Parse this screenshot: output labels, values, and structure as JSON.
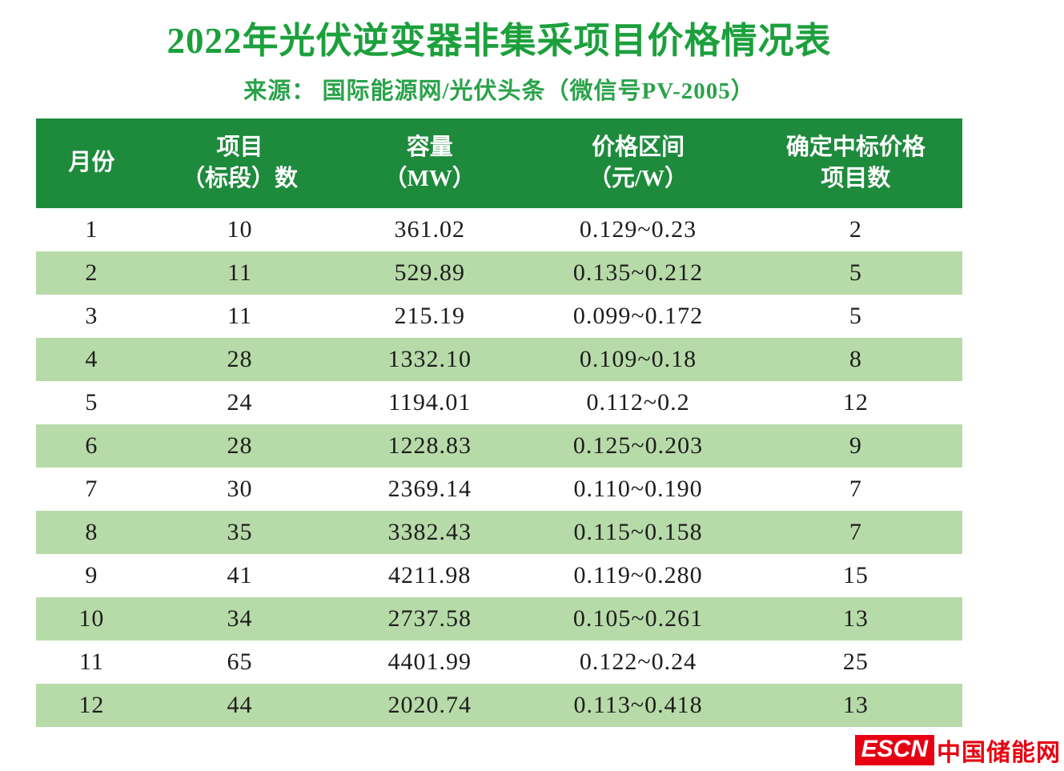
{
  "page": {
    "title": "2022年光伏逆变器非集采项目价格情况表",
    "subtitle": "来源： 国际能源网/光伏头条（微信号PV-2005）"
  },
  "colors": {
    "title_green": "#1ca03c",
    "subtitle_green": "#2aa24a",
    "header_bg_green": "#1e8a3c",
    "alt_row_green": "#b7dba8",
    "logo_red": "#e60012",
    "body_text": "#1c1c1c"
  },
  "table": {
    "headers": [
      {
        "line1": "月份",
        "line2": ""
      },
      {
        "line1": "项目",
        "line2": "（标段）数"
      },
      {
        "line1": "容量",
        "line2": "（MW）"
      },
      {
        "line1": "价格区间",
        "line2": "（元/W）"
      },
      {
        "line1": "确定中标价格",
        "line2": "项目数"
      }
    ]
  },
  "logo": {
    "escn": "ESCN",
    "site": "中国储能网"
  },
  "chart_data": {
    "type": "table",
    "title": "2022年光伏逆变器非集采项目价格情况表",
    "source": "来源： 国际能源网/光伏头条（微信号PV-2005）",
    "columns": [
      "月份",
      "项目（标段）数",
      "容量（MW）",
      "价格区间（元/W）",
      "确定中标价格项目数"
    ],
    "rows": [
      [
        "1",
        "10",
        "361.02",
        "0.129~0.23",
        "2"
      ],
      [
        "2",
        "11",
        "529.89",
        "0.135~0.212",
        "5"
      ],
      [
        "3",
        "11",
        "215.19",
        "0.099~0.172",
        "5"
      ],
      [
        "4",
        "28",
        "1332.10",
        "0.109~0.18",
        "8"
      ],
      [
        "5",
        "24",
        "1194.01",
        "0.112~0.2",
        "12"
      ],
      [
        "6",
        "28",
        "1228.83",
        "0.125~0.203",
        "9"
      ],
      [
        "7",
        "30",
        "2369.14",
        "0.110~0.190",
        "7"
      ],
      [
        "8",
        "35",
        "3382.43",
        "0.115~0.158",
        "7"
      ],
      [
        "9",
        "41",
        "4211.98",
        "0.119~0.280",
        "15"
      ],
      [
        "10",
        "34",
        "2737.58",
        "0.105~0.261",
        "13"
      ],
      [
        "11",
        "65",
        "4401.99",
        "0.122~0.24",
        "25"
      ],
      [
        "12",
        "44",
        "2020.74",
        "0.113~0.418",
        "13"
      ]
    ]
  }
}
